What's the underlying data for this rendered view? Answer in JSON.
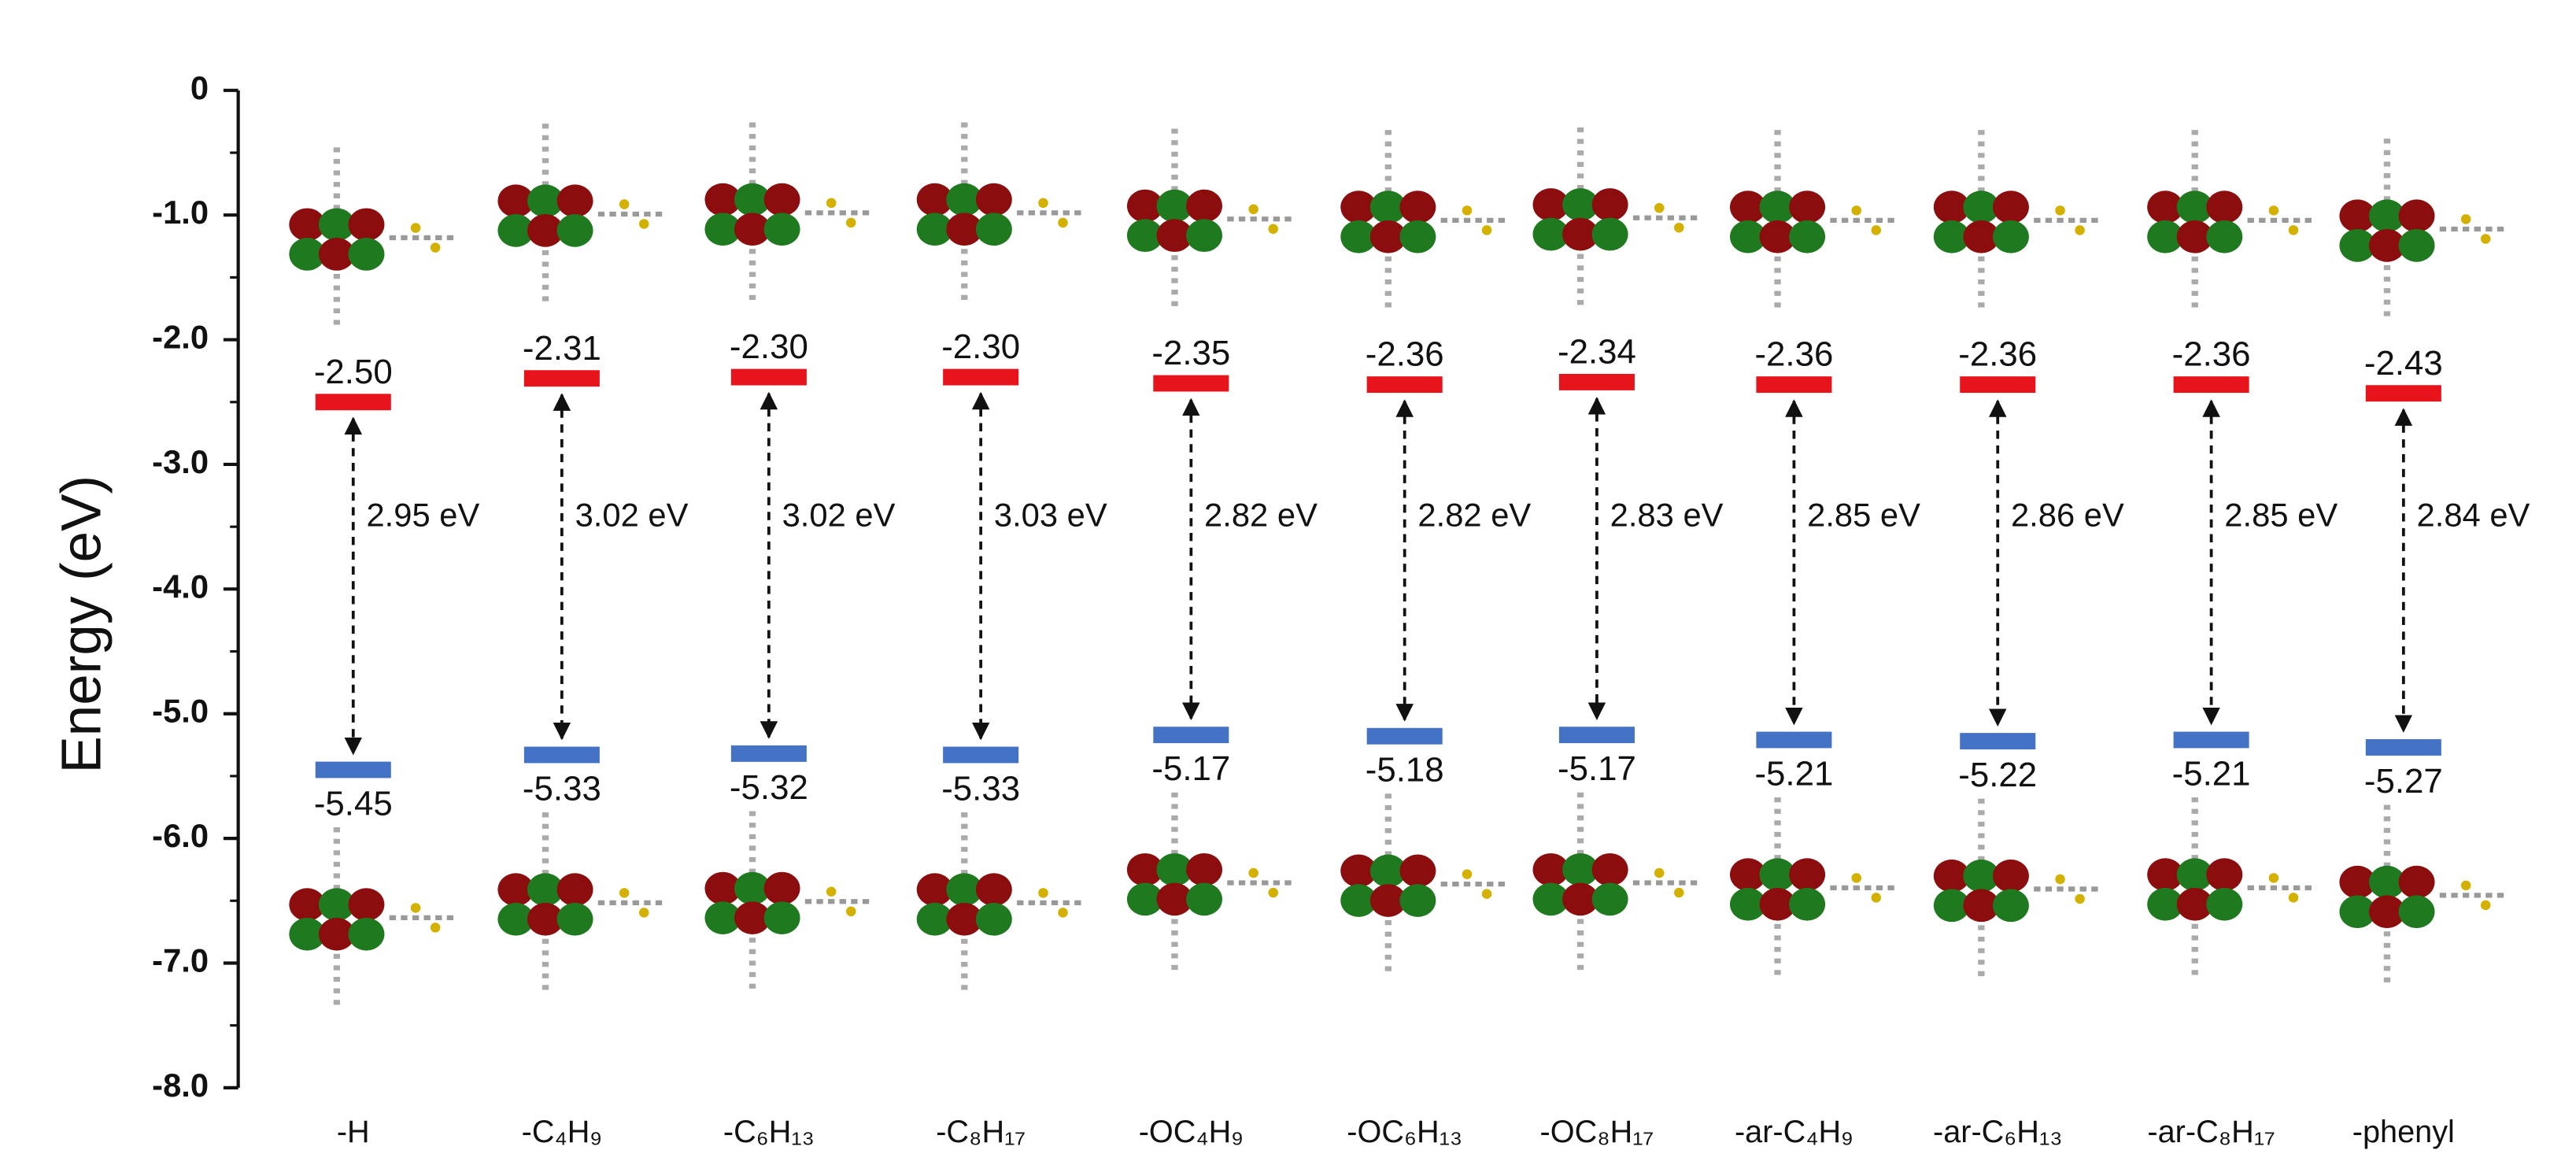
{
  "chart_data": {
    "type": "energy-level",
    "ylabel": "Energy (eV)",
    "categories": [
      "-H",
      "-C₄H₉",
      "-C₆H₁₃",
      "-C₈H₁₇",
      "-OC₄H₉",
      "-OC₆H₁₃",
      "-OC₈H₁₇",
      "-ar-C₄H₉",
      "-ar-C₆H₁₃",
      "-ar-C₈H₁₇",
      "-phenyl"
    ],
    "lumo": {
      "color": "#e8141b",
      "values": [
        -2.5,
        -2.31,
        -2.3,
        -2.3,
        -2.35,
        -2.36,
        -2.34,
        -2.36,
        -2.36,
        -2.36,
        -2.43
      ],
      "value_labels": [
        "-2.50",
        "-2.31",
        "-2.30",
        "-2.30",
        "-2.35",
        "-2.36",
        "-2.34",
        "-2.36",
        "-2.36",
        "-2.36",
        "-2.43"
      ]
    },
    "homo": {
      "color": "#4472c4",
      "values": [
        -5.45,
        -5.33,
        -5.32,
        -5.33,
        -5.17,
        -5.18,
        -5.17,
        -5.21,
        -5.22,
        -5.21,
        -5.27
      ],
      "value_labels": [
        "-5.45",
        "-5.33",
        "-5.32",
        "-5.33",
        "-5.17",
        "-5.18",
        "-5.17",
        "-5.21",
        "-5.22",
        "-5.21",
        "-5.27"
      ]
    },
    "gap": {
      "values": [
        2.95,
        3.02,
        3.02,
        3.03,
        2.82,
        2.82,
        2.83,
        2.85,
        2.86,
        2.85,
        2.84
      ],
      "value_labels": [
        "2.95 eV",
        "3.02 eV",
        "3.02 eV",
        "3.03 eV",
        "2.82 eV",
        "2.82 eV",
        "2.83 eV",
        "2.85 eV",
        "2.86 eV",
        "2.85 eV",
        "2.84 eV"
      ]
    },
    "ylim": [
      -8,
      0
    ],
    "yticks": [
      0,
      {
        "value": -1,
        "label": "-1.0"
      },
      {
        "value": -2,
        "label": "-2.0"
      },
      {
        "value": -3,
        "label": "-3.0"
      },
      {
        "value": -4,
        "label": "-4.0"
      },
      {
        "value": -5,
        "label": "-5.0"
      },
      {
        "value": -6,
        "label": "-6.0"
      },
      {
        "value": -7,
        "label": "-7.0"
      },
      {
        "value": -8,
        "label": "-8.0"
      }
    ],
    "yminorticks": [
      -0.5,
      -1.5,
      -2.5,
      -3.5,
      -4.5,
      -5.5,
      -6.5,
      -7.5
    ]
  }
}
